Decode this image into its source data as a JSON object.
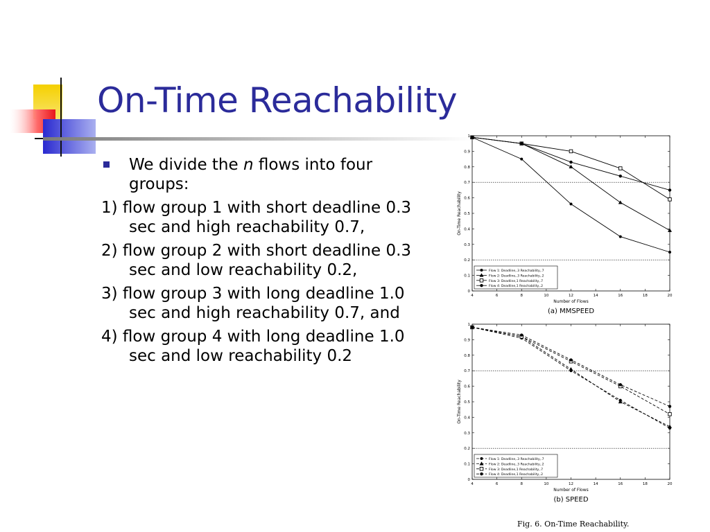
{
  "slide": {
    "title": "On-Time Reachability",
    "bullet": {
      "before": "We divide the ",
      "italic": "n",
      "after": " flows into four groups:"
    },
    "items": [
      "1) flow group 1 with short deadline 0.3 sec and high reachability 0.7,",
      "2) flow group 2 with short deadline 0.3 sec and low reachability 0.2,",
      "3) flow group 3 with long deadline 1.0 sec and high reachability 0.7, and",
      "4) flow group 4 with long deadline 1.0 sec and low reachability 0.2"
    ],
    "figure_caption": "Fig. 6.    On-Time Reachability.",
    "colors": {
      "title": "#2b2b9a",
      "bullet": "#2b2b9a",
      "deco_yellow": "#f5d000",
      "deco_red": "#e8161b",
      "deco_blue": "#3838c8"
    }
  },
  "chart_data": [
    {
      "type": "line",
      "caption": "(a) MMSPEED",
      "xlabel": "Number of Flows",
      "ylabel": "On-Time Reachability",
      "x": [
        4,
        8,
        12,
        16,
        20
      ],
      "xticks": [
        4,
        6,
        8,
        10,
        12,
        14,
        16,
        18,
        20
      ],
      "yticks": [
        "0",
        "0.1",
        "0.2",
        "0.3",
        "0.4",
        "0.5",
        "0.6",
        "0.7",
        "0.8",
        "0.9",
        "1"
      ],
      "xlim": [
        4,
        20
      ],
      "ylim": [
        0,
        1
      ],
      "hlines": [
        0.7,
        0.2
      ],
      "line_style": "solid",
      "legend_position": "bottom-left",
      "series": [
        {
          "name": "Flow 1: Deadline,.3 Reachability,.7",
          "marker": "star",
          "values": [
            0.99,
            0.85,
            0.56,
            0.35,
            0.25
          ]
        },
        {
          "name": "Flow 2: Deadline,.3 Reachability,.2",
          "marker": "triangle",
          "values": [
            0.99,
            0.95,
            0.8,
            0.57,
            0.39
          ]
        },
        {
          "name": "Flow 3: Deadline,1 Reachability,.7",
          "marker": "square",
          "values": [
            0.99,
            0.95,
            0.9,
            0.79,
            0.59
          ]
        },
        {
          "name": "Flow 4: Deadline,1 Reachability,.2",
          "marker": "dot",
          "values": [
            0.99,
            0.95,
            0.83,
            0.74,
            0.65
          ]
        }
      ]
    },
    {
      "type": "line",
      "caption": "(b) SPEED",
      "xlabel": "Number of Flows",
      "ylabel": "On-Time Reachability",
      "x": [
        4,
        8,
        12,
        16,
        20
      ],
      "xticks": [
        4,
        6,
        8,
        10,
        12,
        14,
        16,
        18,
        20
      ],
      "yticks": [
        "0",
        "0.1",
        "0.2",
        "0.3",
        "0.4",
        "0.5",
        "0.6",
        "0.7",
        "0.8",
        "0.9",
        "1"
      ],
      "xlim": [
        4,
        20
      ],
      "ylim": [
        0,
        1
      ],
      "hlines": [
        0.7,
        0.2
      ],
      "line_style": "dashed",
      "legend_position": "bottom-left",
      "series": [
        {
          "name": "Flow 1: Deadline,.3 Reachability,.7",
          "marker": "star",
          "values": [
            0.98,
            0.91,
            0.7,
            0.51,
            0.33
          ]
        },
        {
          "name": "Flow 2: Deadline,.3 Reachability,.2",
          "marker": "triangle",
          "values": [
            0.98,
            0.92,
            0.71,
            0.5,
            0.34
          ]
        },
        {
          "name": "Flow 3: Deadline,1 Reachability,.7",
          "marker": "square",
          "values": [
            0.98,
            0.92,
            0.76,
            0.6,
            0.42
          ]
        },
        {
          "name": "Flow 4: Deadline,1 Reachability,.2",
          "marker": "dot",
          "values": [
            0.98,
            0.93,
            0.77,
            0.61,
            0.47
          ]
        }
      ]
    }
  ]
}
